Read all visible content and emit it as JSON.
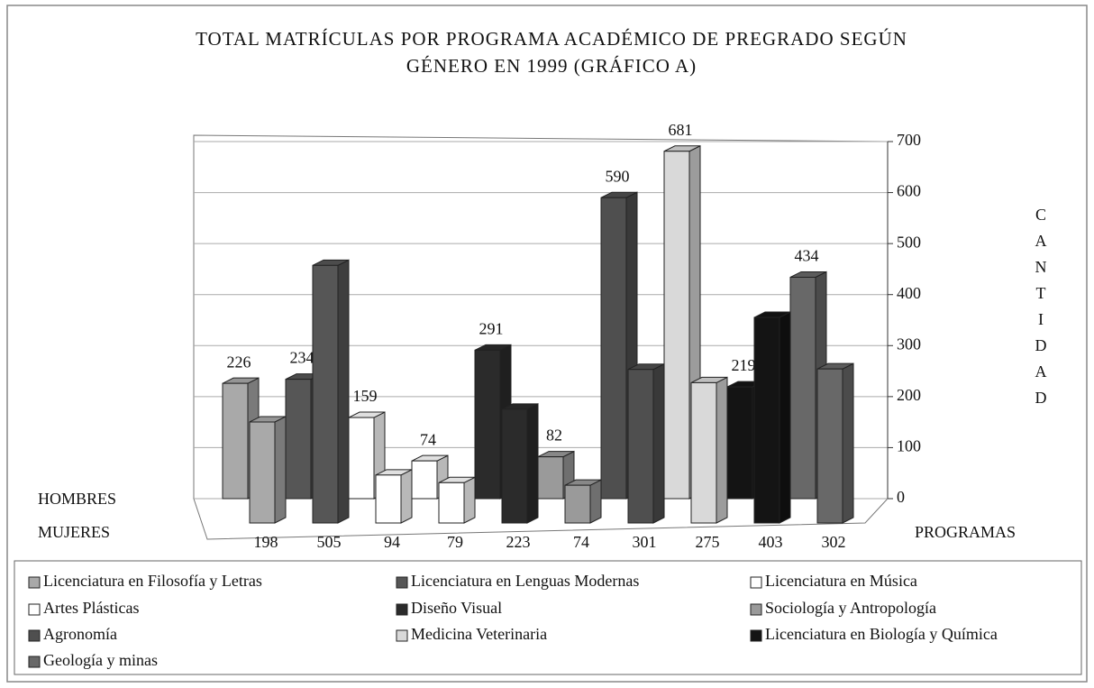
{
  "chart_data": {
    "type": "bar3d",
    "title": [
      "TOTAL MATRÍCULAS POR PROGRAMA ACADÉMICO DE PREGRADO SEGÚN",
      "GÉNERO EN 1999 (GRÁFICO A)"
    ],
    "x_label": "PROGRAMAS",
    "y_label": "CANTIDAD",
    "categories": [
      "Licenciatura en Filosofía y Letras",
      "Licenciatura en Lenguas Modernas",
      "Licenciatura en Música",
      "Artes Plásticas",
      "Diseño Visual",
      "Sociología y Antropología",
      "Agronomía",
      "Medicina Veterinaria",
      "Licenciatura en Biología y Química",
      "Geología y minas"
    ],
    "colors": [
      "#a9a9a9",
      "#565656",
      "#ffffff",
      "#ffffff",
      "#2b2b2b",
      "#9a9a9a",
      "#4f4f4f",
      "#d9d9d9",
      "#141414",
      "#686868"
    ],
    "series": [
      {
        "name": "HOMBRES",
        "values": [
          226,
          234,
          159,
          74,
          291,
          82,
          590,
          681,
          219,
          434
        ]
      },
      {
        "name": "MUJERES",
        "values": [
          198,
          505,
          94,
          79,
          223,
          74,
          301,
          275,
          403,
          302
        ]
      }
    ],
    "ylim": [
      0,
      700
    ],
    "yticks": [
      0,
      100,
      200,
      300,
      400,
      500,
      600,
      700
    ],
    "grid": true
  }
}
